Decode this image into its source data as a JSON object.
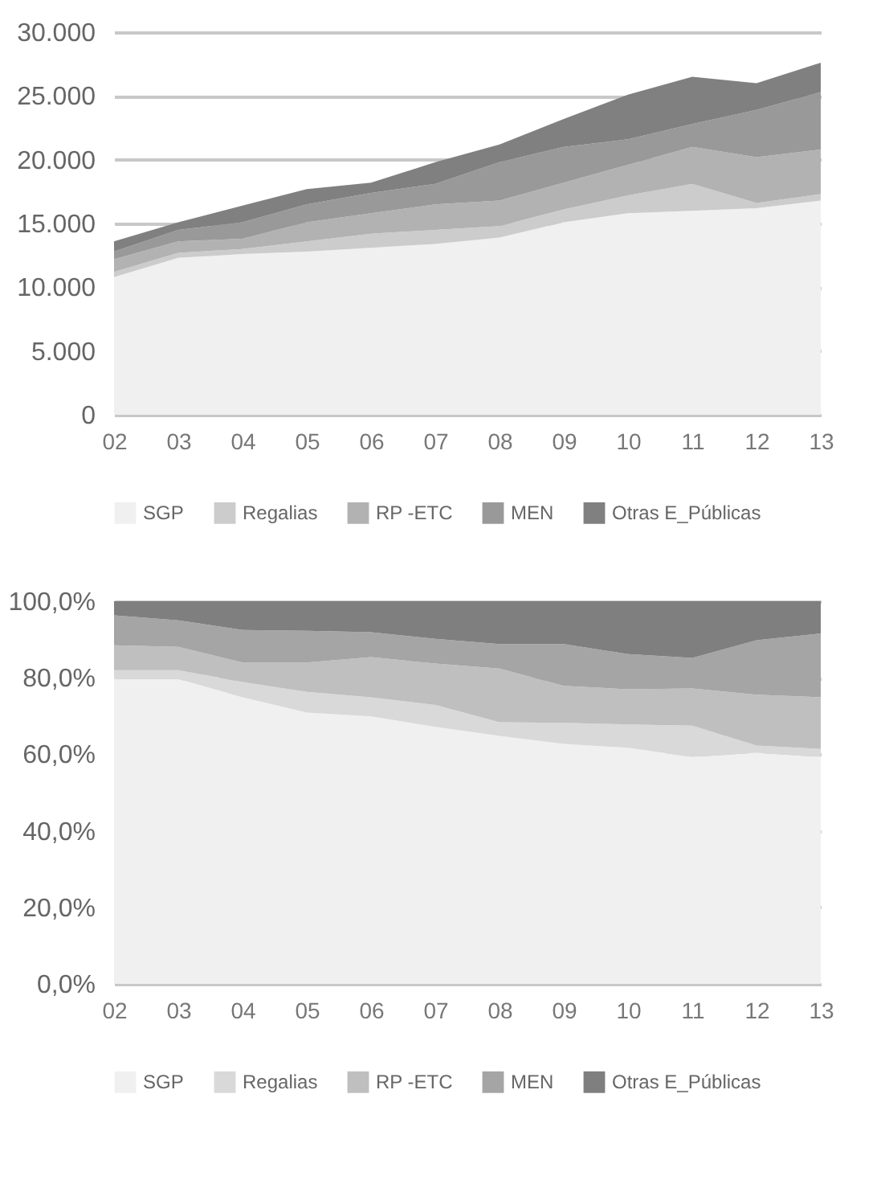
{
  "chart_data": [
    {
      "type": "area",
      "stacked": true,
      "categories": [
        "02",
        "03",
        "04",
        "05",
        "06",
        "07",
        "08",
        "09",
        "10",
        "11",
        "12",
        "13"
      ],
      "series": [
        {
          "name": "SGP",
          "color": "#f0f0f0",
          "values": [
            10800,
            12300,
            12600,
            12800,
            13100,
            13400,
            13900,
            15100,
            15800,
            16000,
            16200,
            16800
          ]
        },
        {
          "name": "Regalias",
          "color": "#cccccc",
          "values": [
            400,
            400,
            400,
            800,
            1100,
            1100,
            900,
            1000,
            1400,
            2100,
            400,
            500
          ]
        },
        {
          "name": "RP -ETC",
          "color": "#b2b2b2",
          "values": [
            1000,
            900,
            800,
            1500,
            1600,
            2000,
            2000,
            2100,
            2400,
            2900,
            3600,
            3500
          ]
        },
        {
          "name": "MEN",
          "color": "#999999",
          "values": [
            600,
            900,
            1300,
            1400,
            1600,
            1600,
            3000,
            2800,
            2000,
            1800,
            3700,
            4500
          ]
        },
        {
          "name": "Otras E_Públicas",
          "color": "#808080",
          "values": [
            800,
            600,
            1300,
            1200,
            800,
            1700,
            1400,
            2200,
            3500,
            3700,
            2100,
            2300
          ]
        }
      ],
      "ylim": [
        0,
        30000
      ],
      "yticks": [
        {
          "value": 0,
          "label": "0"
        },
        {
          "value": 5000,
          "label": "5.000"
        },
        {
          "value": 10000,
          "label": "10.000"
        },
        {
          "value": 15000,
          "label": "15.000"
        },
        {
          "value": 20000,
          "label": "20.000"
        },
        {
          "value": 25000,
          "label": "25.000"
        },
        {
          "value": 30000,
          "label": "30.000"
        }
      ],
      "grid": "y",
      "legend": "bottom"
    },
    {
      "type": "area",
      "stacked": true,
      "categories": [
        "02",
        "03",
        "04",
        "05",
        "06",
        "07",
        "08",
        "09",
        "10",
        "11",
        "12",
        "13"
      ],
      "series": [
        {
          "name": "SGP",
          "color": "#f0f0f0",
          "values": [
            79.7,
            79.7,
            74.9,
            70.9,
            69.9,
            67.2,
            64.8,
            62.7,
            61.7,
            59.3,
            60.4,
            59.3
          ]
        },
        {
          "name": "Regalias",
          "color": "#d9d9d9",
          "values": [
            2.3,
            2.3,
            4.0,
            5.4,
            5.0,
            5.7,
            3.6,
            5.5,
            6.1,
            8.2,
            1.9,
            2.1
          ]
        },
        {
          "name": "RP -ETC",
          "color": "#bfbfbf",
          "values": [
            6.5,
            6.1,
            5.1,
            7.7,
            10.5,
            10.8,
            14.0,
            9.7,
            9.2,
            9.7,
            13.3,
            13.5
          ]
        },
        {
          "name": "MEN",
          "color": "#a5a5a5",
          "values": [
            7.8,
            6.9,
            8.5,
            8.3,
            6.5,
            6.5,
            6.4,
            10.9,
            9.2,
            8.0,
            14.2,
            16.7
          ]
        },
        {
          "name": "Otras E_Públicas",
          "color": "#7f7f7f",
          "values": [
            3.7,
            5.0,
            7.5,
            7.7,
            8.1,
            9.8,
            11.2,
            11.2,
            13.8,
            14.8,
            10.2,
            8.4
          ]
        }
      ],
      "ylim": [
        0,
        100
      ],
      "yticks": [
        {
          "value": 0,
          "label": "0,0%"
        },
        {
          "value": 20,
          "label": "20,0%"
        },
        {
          "value": 40,
          "label": "40,0%"
        },
        {
          "value": 60,
          "label": "60,0%"
        },
        {
          "value": 80,
          "label": "80,0%"
        },
        {
          "value": 100,
          "label": "100,0%"
        }
      ],
      "grid": "y",
      "legend": "bottom"
    }
  ]
}
